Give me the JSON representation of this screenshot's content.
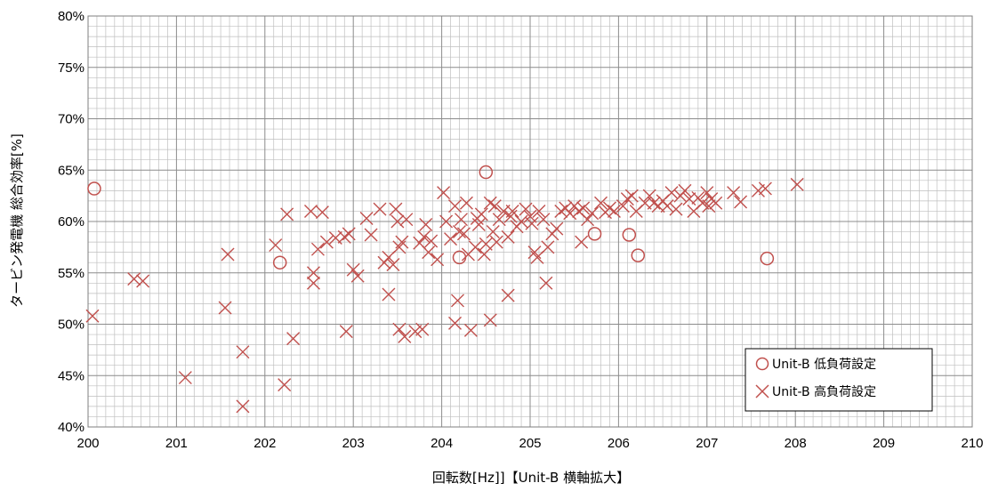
{
  "chart_data": {
    "type": "scatter",
    "title": "",
    "xlabel": "回転数[Hz]]【Unit-B 横軸拡大】",
    "ylabel": "タービン発電機 総合効率[%]",
    "xlim": [
      200,
      210
    ],
    "ylim": [
      40,
      80
    ],
    "x_ticks": [
      "200",
      "201",
      "202",
      "203",
      "204",
      "205",
      "206",
      "207",
      "208",
      "209",
      "210"
    ],
    "y_ticks": [
      "40%",
      "45%",
      "50%",
      "55%",
      "60%",
      "65%",
      "70%",
      "75%",
      "80%"
    ],
    "grid": true,
    "legend_position": "bottom-right",
    "color": "#c0504d",
    "series": [
      {
        "name": "Unit-B 低負荷設定",
        "marker": "circle",
        "points": [
          [
            200.07,
            63.2
          ],
          [
            202.17,
            56.0
          ],
          [
            204.2,
            56.5
          ],
          [
            204.5,
            64.8
          ],
          [
            205.73,
            58.8
          ],
          [
            206.12,
            58.7
          ],
          [
            206.22,
            56.7
          ],
          [
            207.68,
            56.4
          ]
        ]
      },
      {
        "name": "Unit-B 高負荷設定",
        "marker": "x",
        "points": [
          [
            200.05,
            50.8
          ],
          [
            200.52,
            54.4
          ],
          [
            200.62,
            54.2
          ],
          [
            201.1,
            44.8
          ],
          [
            201.55,
            51.6
          ],
          [
            201.58,
            56.8
          ],
          [
            201.75,
            47.3
          ],
          [
            201.75,
            42.0
          ],
          [
            202.12,
            57.7
          ],
          [
            202.22,
            44.1
          ],
          [
            202.25,
            60.7
          ],
          [
            202.32,
            48.6
          ],
          [
            202.52,
            61.0
          ],
          [
            202.55,
            55.0
          ],
          [
            202.55,
            54.0
          ],
          [
            202.6,
            57.3
          ],
          [
            202.65,
            60.9
          ],
          [
            202.7,
            58.0
          ],
          [
            202.8,
            58.4
          ],
          [
            202.9,
            58.5
          ],
          [
            202.92,
            49.3
          ],
          [
            202.95,
            58.8
          ],
          [
            203.0,
            55.3
          ],
          [
            203.05,
            54.7
          ],
          [
            203.15,
            60.3
          ],
          [
            203.2,
            58.7
          ],
          [
            203.3,
            61.2
          ],
          [
            203.35,
            56.0
          ],
          [
            203.4,
            52.9
          ],
          [
            203.4,
            56.5
          ],
          [
            203.45,
            55.8
          ],
          [
            203.48,
            61.2
          ],
          [
            203.5,
            60.0
          ],
          [
            203.52,
            57.5
          ],
          [
            203.52,
            49.5
          ],
          [
            203.55,
            58.0
          ],
          [
            203.58,
            48.8
          ],
          [
            203.6,
            60.2
          ],
          [
            203.7,
            49.3
          ],
          [
            203.75,
            57.9
          ],
          [
            203.78,
            49.5
          ],
          [
            203.8,
            58.5
          ],
          [
            203.82,
            59.7
          ],
          [
            203.85,
            57.0
          ],
          [
            203.88,
            58.1
          ],
          [
            203.95,
            56.3
          ],
          [
            204.02,
            62.8
          ],
          [
            204.05,
            60.0
          ],
          [
            204.1,
            58.3
          ],
          [
            204.15,
            61.5
          ],
          [
            204.15,
            50.1
          ],
          [
            204.18,
            52.3
          ],
          [
            204.2,
            59.0
          ],
          [
            204.22,
            60.2
          ],
          [
            204.25,
            58.8
          ],
          [
            204.28,
            61.8
          ],
          [
            204.3,
            56.8
          ],
          [
            204.33,
            49.4
          ],
          [
            204.38,
            57.5
          ],
          [
            204.4,
            60.3
          ],
          [
            204.42,
            59.7
          ],
          [
            204.45,
            60.7
          ],
          [
            204.48,
            56.8
          ],
          [
            204.5,
            57.8
          ],
          [
            204.55,
            61.8
          ],
          [
            204.55,
            50.4
          ],
          [
            204.58,
            59.0
          ],
          [
            204.6,
            61.5
          ],
          [
            204.62,
            58.0
          ],
          [
            204.65,
            60.2
          ],
          [
            204.7,
            61.0
          ],
          [
            204.75,
            58.5
          ],
          [
            204.75,
            52.8
          ],
          [
            204.78,
            60.5
          ],
          [
            204.8,
            61.0
          ],
          [
            204.85,
            59.5
          ],
          [
            204.9,
            60.0
          ],
          [
            204.95,
            61.2
          ],
          [
            205.0,
            60.5
          ],
          [
            205.02,
            59.8
          ],
          [
            205.05,
            57.0
          ],
          [
            205.08,
            56.5
          ],
          [
            205.1,
            61.0
          ],
          [
            205.15,
            60.2
          ],
          [
            205.18,
            54.0
          ],
          [
            205.2,
            57.5
          ],
          [
            205.25,
            58.8
          ],
          [
            205.3,
            59.3
          ],
          [
            205.35,
            61.0
          ],
          [
            205.4,
            61.3
          ],
          [
            205.45,
            60.8
          ],
          [
            205.5,
            61.5
          ],
          [
            205.55,
            61.0
          ],
          [
            205.58,
            58.0
          ],
          [
            205.6,
            61.3
          ],
          [
            205.65,
            60.2
          ],
          [
            205.7,
            60.8
          ],
          [
            205.8,
            61.8
          ],
          [
            205.85,
            60.9
          ],
          [
            205.9,
            61.3
          ],
          [
            205.95,
            61.0
          ],
          [
            206.05,
            61.5
          ],
          [
            206.1,
            62.2
          ],
          [
            206.15,
            62.5
          ],
          [
            206.2,
            61.0
          ],
          [
            206.3,
            61.8
          ],
          [
            206.35,
            62.5
          ],
          [
            206.4,
            61.8
          ],
          [
            206.45,
            61.5
          ],
          [
            206.5,
            62.0
          ],
          [
            206.55,
            61.5
          ],
          [
            206.6,
            62.8
          ],
          [
            206.65,
            61.2
          ],
          [
            206.7,
            62.5
          ],
          [
            206.75,
            63.0
          ],
          [
            206.8,
            62.2
          ],
          [
            206.85,
            61.0
          ],
          [
            206.9,
            62.3
          ],
          [
            206.95,
            61.8
          ],
          [
            207.0,
            62.8
          ],
          [
            207.02,
            61.5
          ],
          [
            207.05,
            62.2
          ],
          [
            207.1,
            61.8
          ],
          [
            207.3,
            62.8
          ],
          [
            207.38,
            61.9
          ],
          [
            207.58,
            63.0
          ],
          [
            207.66,
            63.2
          ],
          [
            208.02,
            63.6
          ]
        ]
      }
    ]
  }
}
